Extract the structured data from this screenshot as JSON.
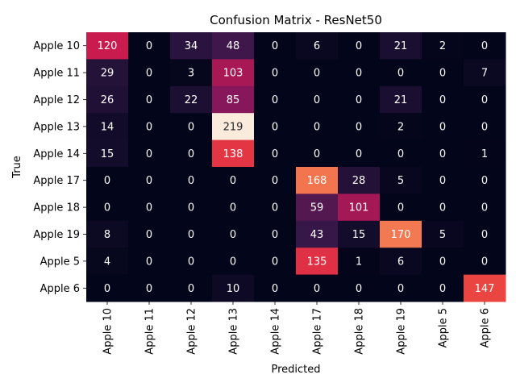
{
  "chart_data": {
    "type": "heatmap",
    "title": "Confusion Matrix - ResNet50",
    "xlabel": "Predicted",
    "ylabel": "True",
    "row_labels": [
      "Apple 10",
      "Apple 11",
      "Apple 12",
      "Apple 13",
      "Apple 14",
      "Apple 17",
      "Apple 18",
      "Apple 19",
      "Apple 5",
      "Apple 6"
    ],
    "col_labels": [
      "Apple 10",
      "Apple 11",
      "Apple 12",
      "Apple 13",
      "Apple 14",
      "Apple 17",
      "Apple 18",
      "Apple 19",
      "Apple 5",
      "Apple 6"
    ],
    "values": [
      [
        120,
        0,
        34,
        48,
        0,
        6,
        0,
        21,
        2,
        0
      ],
      [
        29,
        0,
        3,
        103,
        0,
        0,
        0,
        0,
        0,
        7
      ],
      [
        26,
        0,
        22,
        85,
        0,
        0,
        0,
        21,
        0,
        0
      ],
      [
        14,
        0,
        0,
        219,
        0,
        0,
        0,
        2,
        0,
        0
      ],
      [
        15,
        0,
        0,
        138,
        0,
        0,
        0,
        0,
        0,
        1
      ],
      [
        0,
        0,
        0,
        0,
        0,
        168,
        28,
        5,
        0,
        0
      ],
      [
        0,
        0,
        0,
        0,
        0,
        59,
        101,
        0,
        0,
        0
      ],
      [
        8,
        0,
        0,
        0,
        0,
        43,
        15,
        170,
        5,
        0
      ],
      [
        4,
        0,
        0,
        0,
        0,
        135,
        1,
        6,
        0,
        0
      ],
      [
        0,
        0,
        0,
        10,
        0,
        0,
        0,
        0,
        0,
        147
      ]
    ],
    "value_range": [
      0,
      219
    ],
    "colormap": "rocket",
    "grid": false,
    "colorbar": false
  }
}
